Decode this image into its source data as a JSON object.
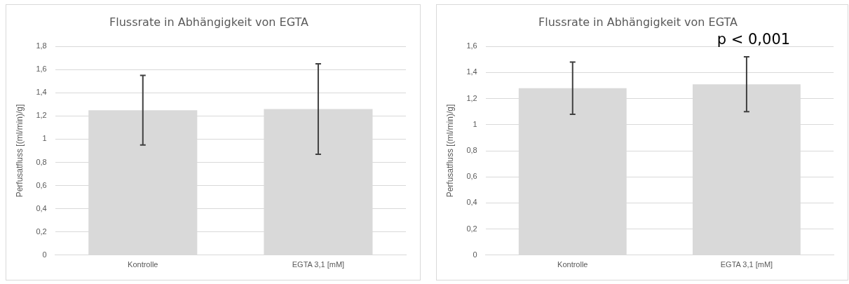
{
  "chart_data": [
    {
      "type": "bar",
      "title": "Flussrate in Abhängigkeit von EGTA",
      "ylabel": "Perfusatfluss [(ml/min)/g]",
      "categories": [
        "Kontrolle",
        "EGTA 3,1 [mM]"
      ],
      "series": [
        {
          "color": "#d9d9d9",
          "values": [
            1.25,
            1.26
          ],
          "errors": [
            0.3,
            0.39
          ]
        }
      ],
      "ylim": [
        0,
        1.8
      ],
      "yticks": [
        {
          "value": 0,
          "label": "0"
        },
        {
          "value": 0.2,
          "label": "0,2"
        },
        {
          "value": 0.4,
          "label": "0,4"
        },
        {
          "value": 0.6,
          "label": "0,6"
        },
        {
          "value": 0.8,
          "label": "0,8"
        },
        {
          "value": 1,
          "label": "1"
        },
        {
          "value": 1.2,
          "label": "1,2"
        },
        {
          "value": 1.4,
          "label": "1,4"
        },
        {
          "value": 1.6,
          "label": "1,6"
        },
        {
          "value": 1.8,
          "label": "1,8"
        }
      ],
      "grid": "y",
      "legend": false
    },
    {
      "type": "bar",
      "title": "Flussrate in Abhängigkeit von EGTA",
      "ylabel": "Perfusatfluss [(ml/min)/g]",
      "categories": [
        "Kontrolle",
        "EGTA 3,1 [mM]"
      ],
      "series": [
        {
          "color": "#d9d9d9",
          "values": [
            1.28,
            1.31
          ],
          "errors": [
            0.2,
            0.21
          ]
        }
      ],
      "ylim": [
        0,
        1.6
      ],
      "yticks": [
        {
          "value": 0,
          "label": "0"
        },
        {
          "value": 0.2,
          "label": "0,2"
        },
        {
          "value": 0.4,
          "label": "0,4"
        },
        {
          "value": 0.6,
          "label": "0,6"
        },
        {
          "value": 0.8,
          "label": "0,8"
        },
        {
          "value": 1,
          "label": "1"
        },
        {
          "value": 1.2,
          "label": "1,2"
        },
        {
          "value": 1.4,
          "label": "1,4"
        },
        {
          "value": 1.6,
          "label": "1,6"
        }
      ],
      "grid": "y",
      "legend": false,
      "annotations": [
        "p < 0,001"
      ]
    }
  ]
}
